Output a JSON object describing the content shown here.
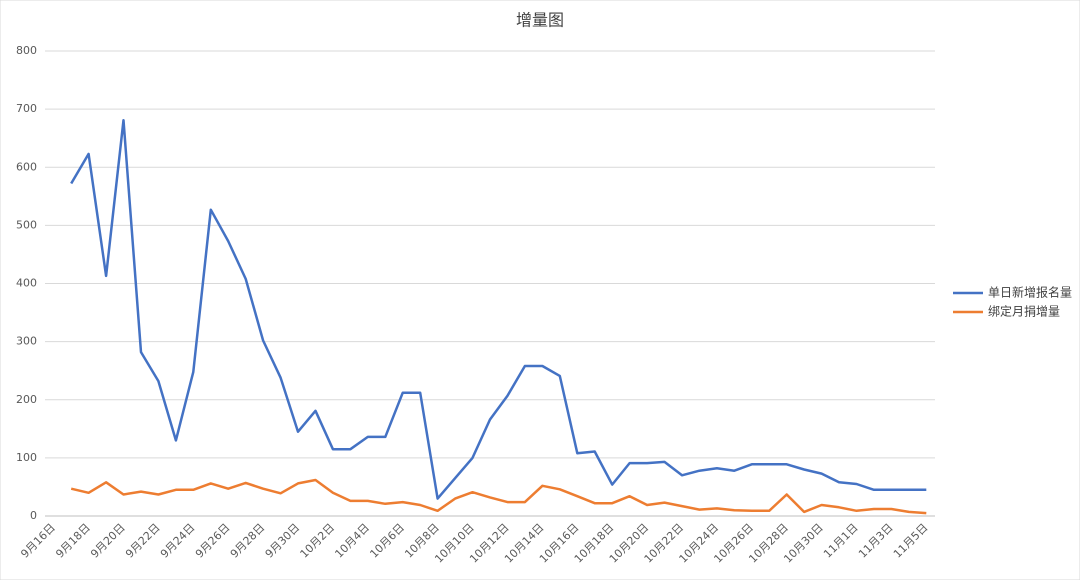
{
  "chart_data": {
    "type": "line",
    "title": "增量图",
    "categories": [
      "9月16日",
      null,
      "9月18日",
      null,
      "9月20日",
      null,
      "9月22日",
      null,
      "9月24日",
      null,
      "9月26日",
      null,
      "9月28日",
      null,
      "9月30日",
      null,
      "10月2日",
      null,
      "10月4日",
      null,
      "10月6日",
      null,
      "10月8日",
      null,
      "10月10日",
      null,
      "10月12日",
      null,
      "10月14日",
      null,
      "10月16日",
      null,
      "10月18日",
      null,
      "10月20日",
      null,
      "10月22日",
      null,
      "10月24日",
      null,
      "10月26日",
      null,
      "10月28日",
      null,
      "10月30日",
      null,
      "11月1日",
      null,
      "11月3日",
      null,
      "11月5日"
    ],
    "series": [
      {
        "name": "单日新增报名量",
        "color": "#4472c4",
        "values": [
          null,
          572,
          623,
          413,
          681,
          282,
          232,
          130,
          248,
          527,
          473,
          408,
          302,
          238,
          145,
          181,
          115,
          115,
          136,
          136,
          212,
          212,
          30,
          65,
          100,
          166,
          207,
          258,
          258,
          241,
          108,
          111,
          54,
          91,
          91,
          93,
          70,
          78,
          82,
          78,
          89,
          89,
          89,
          80,
          73,
          58,
          55,
          45,
          45,
          45,
          45
        ]
      },
      {
        "name": "绑定月捐增量",
        "color": "#ed7d31",
        "values": [
          null,
          47,
          40,
          58,
          37,
          42,
          37,
          45,
          45,
          56,
          47,
          57,
          47,
          39,
          56,
          62,
          40,
          26,
          26,
          21,
          24,
          19,
          9,
          30,
          41,
          32,
          24,
          24,
          52,
          46,
          34,
          22,
          22,
          34,
          19,
          23,
          17,
          11,
          13,
          10,
          9,
          9,
          37,
          7,
          19,
          15,
          9,
          12,
          12,
          7,
          5
        ]
      }
    ],
    "ylim": [
      0,
      800
    ],
    "yticks": [
      0,
      100,
      200,
      300,
      400,
      500,
      600,
      700,
      800
    ],
    "grid": true,
    "legend": "right"
  }
}
